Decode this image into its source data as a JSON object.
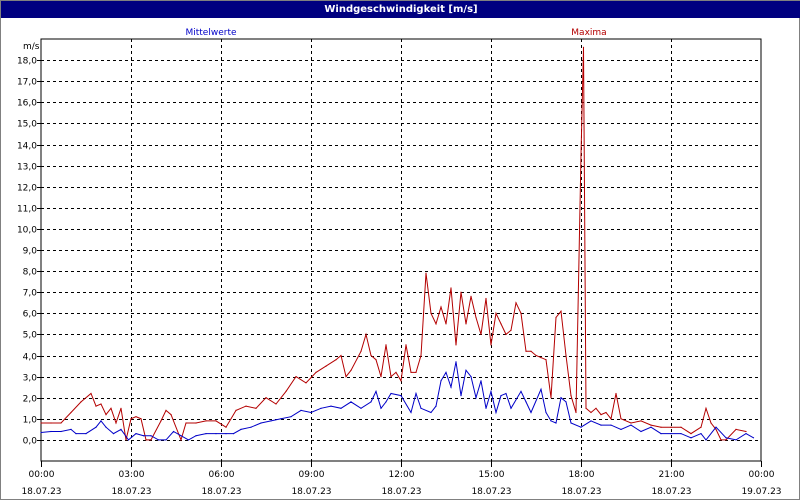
{
  "window": {
    "title": "Windgeschwindigkeit [m/s]"
  },
  "colors": {
    "titlebar": "#000080",
    "mean": "#0000c8",
    "max": "#b40000",
    "grid": "#000000"
  },
  "chart_data": {
    "type": "line",
    "title": "Windgeschwindigkeit [m/s]",
    "ylabel": "m/s",
    "ylim": [
      -1,
      19
    ],
    "xlim": [
      "18.07.23 00:00",
      "19.07.23 00:00"
    ],
    "x_ticks": [
      {
        "time": "00:00",
        "date": "18.07.23"
      },
      {
        "time": "03:00",
        "date": "18.07.23"
      },
      {
        "time": "06:00",
        "date": "18.07.23"
      },
      {
        "time": "09:00",
        "date": "18.07.23"
      },
      {
        "time": "12:00",
        "date": "18.07.23"
      },
      {
        "time": "15:00",
        "date": "18.07.23"
      },
      {
        "time": "18:00",
        "date": "18.07.23"
      },
      {
        "time": "21:00",
        "date": "18.07.23"
      },
      {
        "time": "00:00",
        "date": "19.07.23"
      }
    ],
    "y_ticks": [
      "0,0",
      "1,0",
      "2,0",
      "3,0",
      "4,0",
      "5,0",
      "6,0",
      "7,0",
      "8,0",
      "9,0",
      "10,0",
      "11,0",
      "12,0",
      "13,0",
      "14,0",
      "15,0",
      "16,0",
      "17,0",
      "18,0"
    ],
    "grid": true,
    "series": [
      {
        "name": "Mittelwerte",
        "color": "#0000c8",
        "points": [
          [
            "18.07.23 00:00",
            0.35
          ],
          [
            "18.07.23 00:20",
            0.4
          ],
          [
            "18.07.23 00:40",
            0.4
          ],
          [
            "18.07.23 01:00",
            0.5
          ],
          [
            "18.07.23 01:10",
            0.3
          ],
          [
            "18.07.23 01:30",
            0.3
          ],
          [
            "18.07.23 01:50",
            0.6
          ],
          [
            "18.07.23 02:00",
            0.9
          ],
          [
            "18.07.23 02:10",
            0.6
          ],
          [
            "18.07.23 02:25",
            0.3
          ],
          [
            "18.07.23 02:40",
            0.5
          ],
          [
            "18.07.23 02:55",
            0.0
          ],
          [
            "18.07.23 03:10",
            0.3
          ],
          [
            "18.07.23 03:25",
            0.2
          ],
          [
            "18.07.23 03:40",
            0.2
          ],
          [
            "18.07.23 03:55",
            0.0
          ],
          [
            "18.07.23 04:10",
            0.0
          ],
          [
            "18.07.23 04:25",
            0.4
          ],
          [
            "18.07.23 04:40",
            0.2
          ],
          [
            "18.07.23 04:55",
            0.0
          ],
          [
            "18.07.23 05:10",
            0.2
          ],
          [
            "18.07.23 05:30",
            0.3
          ],
          [
            "18.07.23 05:50",
            0.3
          ],
          [
            "18.07.23 06:10",
            0.3
          ],
          [
            "18.07.23 06:25",
            0.3
          ],
          [
            "18.07.23 06:40",
            0.5
          ],
          [
            "18.07.23 07:00",
            0.6
          ],
          [
            "18.07.23 07:20",
            0.8
          ],
          [
            "18.07.23 07:40",
            0.9
          ],
          [
            "18.07.23 08:00",
            1.0
          ],
          [
            "18.07.23 08:20",
            1.1
          ],
          [
            "18.07.23 08:40",
            1.4
          ],
          [
            "18.07.23 09:00",
            1.3
          ],
          [
            "18.07.23 09:20",
            1.5
          ],
          [
            "18.07.23 09:40",
            1.6
          ],
          [
            "18.07.23 10:00",
            1.5
          ],
          [
            "18.07.23 10:20",
            1.8
          ],
          [
            "18.07.23 10:40",
            1.5
          ],
          [
            "18.07.23 11:00",
            1.8
          ],
          [
            "18.07.23 11:10",
            2.3
          ],
          [
            "18.07.23 11:20",
            1.5
          ],
          [
            "18.07.23 11:30",
            1.8
          ],
          [
            "18.07.23 11:40",
            2.2
          ],
          [
            "18.07.23 12:00",
            2.1
          ],
          [
            "18.07.23 12:20",
            1.3
          ],
          [
            "18.07.23 12:30",
            2.2
          ],
          [
            "18.07.23 12:40",
            1.5
          ],
          [
            "18.07.23 13:00",
            1.3
          ],
          [
            "18.07.23 13:10",
            1.6
          ],
          [
            "18.07.23 13:20",
            2.8
          ],
          [
            "18.07.23 13:30",
            3.2
          ],
          [
            "18.07.23 13:40",
            2.5
          ],
          [
            "18.07.23 13:50",
            3.7
          ],
          [
            "18.07.23 14:00",
            2.1
          ],
          [
            "18.07.23 14:10",
            3.3
          ],
          [
            "18.07.23 14:20",
            3.0
          ],
          [
            "18.07.23 14:30",
            2.0
          ],
          [
            "18.07.23 14:40",
            2.8
          ],
          [
            "18.07.23 14:50",
            1.5
          ],
          [
            "18.07.23 15:00",
            2.3
          ],
          [
            "18.07.23 15:10",
            1.3
          ],
          [
            "18.07.23 15:20",
            2.1
          ],
          [
            "18.07.23 15:30",
            2.2
          ],
          [
            "18.07.23 15:40",
            1.5
          ],
          [
            "18.07.23 16:00",
            2.3
          ],
          [
            "18.07.23 16:10",
            1.8
          ],
          [
            "18.07.23 16:20",
            1.3
          ],
          [
            "18.07.23 16:40",
            2.4
          ],
          [
            "18.07.23 16:50",
            1.3
          ],
          [
            "18.07.23 17:00",
            0.9
          ],
          [
            "18.07.23 17:10",
            0.8
          ],
          [
            "18.07.23 17:20",
            2.0
          ],
          [
            "18.07.23 17:30",
            1.8
          ],
          [
            "18.07.23 17:40",
            0.8
          ],
          [
            "18.07.23 18:00",
            0.6
          ],
          [
            "18.07.23 18:20",
            0.9
          ],
          [
            "18.07.23 18:40",
            0.7
          ],
          [
            "18.07.23 19:00",
            0.7
          ],
          [
            "18.07.23 19:20",
            0.5
          ],
          [
            "18.07.23 19:40",
            0.7
          ],
          [
            "18.07.23 20:00",
            0.4
          ],
          [
            "18.07.23 20:20",
            0.6
          ],
          [
            "18.07.23 20:40",
            0.3
          ],
          [
            "18.07.23 21:00",
            0.3
          ],
          [
            "18.07.23 21:20",
            0.3
          ],
          [
            "18.07.23 21:40",
            0.1
          ],
          [
            "18.07.23 22:00",
            0.3
          ],
          [
            "18.07.23 22:10",
            0.0
          ],
          [
            "18.07.23 22:30",
            0.6
          ],
          [
            "18.07.23 22:50",
            0.1
          ],
          [
            "18.07.23 23:10",
            0.0
          ],
          [
            "18.07.23 23:30",
            0.3
          ],
          [
            "18.07.23 23:45",
            0.1
          ]
        ]
      },
      {
        "name": "Maxima",
        "color": "#b40000",
        "points": [
          [
            "18.07.23 00:00",
            0.8
          ],
          [
            "18.07.23 00:20",
            0.8
          ],
          [
            "18.07.23 00:40",
            0.8
          ],
          [
            "18.07.23 01:00",
            1.3
          ],
          [
            "18.07.23 01:20",
            1.8
          ],
          [
            "18.07.23 01:40",
            2.2
          ],
          [
            "18.07.23 01:50",
            1.6
          ],
          [
            "18.07.23 02:00",
            1.7
          ],
          [
            "18.07.23 02:10",
            1.2
          ],
          [
            "18.07.23 02:20",
            1.5
          ],
          [
            "18.07.23 02:30",
            0.8
          ],
          [
            "18.07.23 02:40",
            1.5
          ],
          [
            "18.07.23 02:50",
            0.0
          ],
          [
            "18.07.23 03:00",
            1.0
          ],
          [
            "18.07.23 03:10",
            1.1
          ],
          [
            "18.07.23 03:20",
            1.0
          ],
          [
            "18.07.23 03:30",
            0.0
          ],
          [
            "18.07.23 03:40",
            0.0
          ],
          [
            "18.07.23 04:00",
            0.9
          ],
          [
            "18.07.23 04:10",
            1.4
          ],
          [
            "18.07.23 04:20",
            1.2
          ],
          [
            "18.07.23 04:40",
            0.0
          ],
          [
            "18.07.23 04:50",
            0.8
          ],
          [
            "18.07.23 05:10",
            0.8
          ],
          [
            "18.07.23 05:30",
            0.9
          ],
          [
            "18.07.23 05:50",
            0.9
          ],
          [
            "18.07.23 06:10",
            0.6
          ],
          [
            "18.07.23 06:30",
            1.4
          ],
          [
            "18.07.23 06:50",
            1.6
          ],
          [
            "18.07.23 07:10",
            1.5
          ],
          [
            "18.07.23 07:30",
            2.0
          ],
          [
            "18.07.23 07:50",
            1.7
          ],
          [
            "18.07.23 08:10",
            2.3
          ],
          [
            "18.07.23 08:30",
            3.0
          ],
          [
            "18.07.23 08:50",
            2.7
          ],
          [
            "18.07.23 09:10",
            3.2
          ],
          [
            "18.07.23 09:30",
            3.5
          ],
          [
            "18.07.23 09:50",
            3.8
          ],
          [
            "18.07.23 10:00",
            4.0
          ],
          [
            "18.07.23 10:10",
            3.0
          ],
          [
            "18.07.23 10:20",
            3.3
          ],
          [
            "18.07.23 10:40",
            4.2
          ],
          [
            "18.07.23 10:50",
            5.0
          ],
          [
            "18.07.23 11:00",
            4.0
          ],
          [
            "18.07.23 11:10",
            3.8
          ],
          [
            "18.07.23 11:20",
            3.0
          ],
          [
            "18.07.23 11:30",
            4.5
          ],
          [
            "18.07.23 11:40",
            3.0
          ],
          [
            "18.07.23 11:50",
            3.2
          ],
          [
            "18.07.23 12:00",
            2.8
          ],
          [
            "18.07.23 12:10",
            4.5
          ],
          [
            "18.07.23 12:20",
            3.2
          ],
          [
            "18.07.23 12:30",
            3.2
          ],
          [
            "18.07.23 12:40",
            4.0
          ],
          [
            "18.07.23 12:50",
            7.9
          ],
          [
            "18.07.23 13:00",
            6.0
          ],
          [
            "18.07.23 13:10",
            5.5
          ],
          [
            "18.07.23 13:20",
            6.3
          ],
          [
            "18.07.23 13:30",
            5.5
          ],
          [
            "18.07.23 13:40",
            7.2
          ],
          [
            "18.07.23 13:50",
            4.5
          ],
          [
            "18.07.23 14:00",
            7.0
          ],
          [
            "18.07.23 14:10",
            5.5
          ],
          [
            "18.07.23 14:20",
            6.8
          ],
          [
            "18.07.23 14:30",
            5.8
          ],
          [
            "18.07.23 14:40",
            5.0
          ],
          [
            "18.07.23 14:50",
            6.7
          ],
          [
            "18.07.23 15:00",
            4.5
          ],
          [
            "18.07.23 15:10",
            6.0
          ],
          [
            "18.07.23 15:20",
            5.5
          ],
          [
            "18.07.23 15:30",
            5.0
          ],
          [
            "18.07.23 15:40",
            5.2
          ],
          [
            "18.07.23 15:50",
            6.5
          ],
          [
            "18.07.23 16:00",
            6.0
          ],
          [
            "18.07.23 16:10",
            4.2
          ],
          [
            "18.07.23 16:20",
            4.2
          ],
          [
            "18.07.23 16:30",
            4.0
          ],
          [
            "18.07.23 16:40",
            3.9
          ],
          [
            "18.07.23 16:50",
            3.8
          ],
          [
            "18.07.23 17:00",
            2.0
          ],
          [
            "18.07.23 17:10",
            5.8
          ],
          [
            "18.07.23 17:20",
            6.1
          ],
          [
            "18.07.23 17:30",
            4.0
          ],
          [
            "18.07.23 17:40",
            2.1
          ],
          [
            "18.07.23 17:50",
            1.3
          ],
          [
            "18.07.23 18:00",
            13.5
          ],
          [
            "18.07.23 18:05",
            18.6
          ],
          [
            "18.07.23 18:10",
            1.5
          ],
          [
            "18.07.23 18:20",
            1.3
          ],
          [
            "18.07.23 18:30",
            1.5
          ],
          [
            "18.07.23 18:40",
            1.2
          ],
          [
            "18.07.23 18:50",
            1.3
          ],
          [
            "18.07.23 19:00",
            1.0
          ],
          [
            "18.07.23 19:10",
            2.2
          ],
          [
            "18.07.23 19:20",
            1.0
          ],
          [
            "18.07.23 19:40",
            0.8
          ],
          [
            "18.07.23 20:00",
            0.9
          ],
          [
            "18.07.23 20:20",
            0.7
          ],
          [
            "18.07.23 20:40",
            0.6
          ],
          [
            "18.07.23 21:00",
            0.6
          ],
          [
            "18.07.23 21:20",
            0.6
          ],
          [
            "18.07.23 21:40",
            0.3
          ],
          [
            "18.07.23 22:00",
            0.6
          ],
          [
            "18.07.23 22:10",
            1.5
          ],
          [
            "18.07.23 22:20",
            0.8
          ],
          [
            "18.07.23 22:30",
            0.5
          ],
          [
            "18.07.23 22:40",
            0.0
          ],
          [
            "18.07.23 22:50",
            0.0
          ],
          [
            "18.07.23 23:10",
            0.5
          ],
          [
            "18.07.23 23:30",
            0.4
          ]
        ]
      }
    ]
  }
}
